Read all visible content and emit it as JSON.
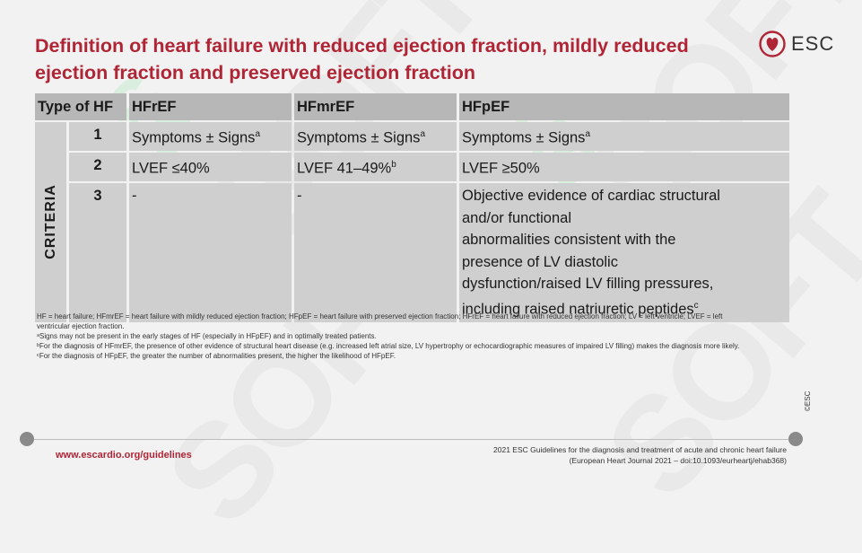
{
  "title": "Definition of heart failure with reduced ejection fraction, mildly reduced ejection fraction and preserved ejection fraction",
  "logo": {
    "text": "ESC",
    "icon": "heart-icon",
    "color": "#b02535"
  },
  "table": {
    "headers": [
      "Type of HF",
      "HFrEF",
      "HFmrEF",
      "HFpEF"
    ],
    "criteria_label": "CRITERIA",
    "rows": [
      {
        "num": "1",
        "hfref": "Symptoms ± Signs",
        "hfref_sup": "a",
        "hfmref": "Symptoms ± Signs",
        "hfmref_sup": "a",
        "hfpef": "Symptoms ± Signs",
        "hfpef_sup": "a"
      },
      {
        "num": "2",
        "hfref": "LVEF ≤40%",
        "hfref_sup": "",
        "hfmref": "LVEF 41–49%",
        "hfmref_sup": "b",
        "hfpef": "LVEF ≥50%",
        "hfpef_sup": ""
      },
      {
        "num": "3",
        "hfref": "-",
        "hfref_sup": "",
        "hfmref": "-",
        "hfmref_sup": "",
        "hfpef_lines": [
          "Objective evidence of cardiac structural",
          "and/or functional",
          "abnormalities consistent with the",
          "presence of LV diastolic",
          "dysfunction/raised LV filling pressures,",
          "including raised natriuretic peptides"
        ],
        "hfpef_sup": "c"
      }
    ]
  },
  "footnotes": [
    "HF = heart failure; HFmrEF = heart failure with mildly reduced ejection fraction; HFpEF = heart failure with preserved ejection fraction; HFrEF = heart failure with reduced ejection fraction; LV = left ventricle; LVEF = left ventricular ejection fraction.",
    "ᵃSigns may not be present in the early stages of HF (especially in HFpEF) and in optimally treated patients.",
    "ᵇFor the diagnosis of HFmrEF, the presence of other evidence of structural heart disease (e.g. increased left atrial size, LV hypertrophy or echocardiographic measures of impaired LV filling) makes the diagnosis more likely.",
    "ᶜFor the diagnosis of HFpEF, the greater the number of abnormalities present, the higher the likelihood of HFpEF."
  ],
  "copyright": "©ESC",
  "footer": {
    "url": "www.escardio.org/guidelines",
    "ref_line1": "2021 ESC Guidelines for the diagnosis and treatment of acute and chronic heart failure",
    "ref_line2": "(European Heart Journal 2021 – doi:10.1093/eurheartj/ehab368)"
  },
  "watermark": "SOFT",
  "colors": {
    "accent": "#b02535",
    "header_bg": "#b7b7b7",
    "cell_bg": "#cfcfcf",
    "background": "#f2f2f2"
  }
}
